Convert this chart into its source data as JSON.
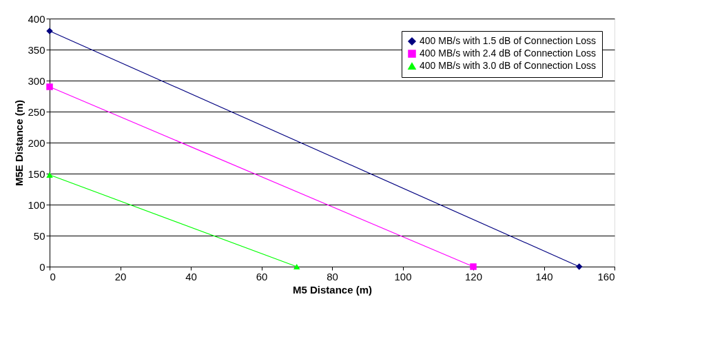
{
  "chart_data": {
    "type": "line",
    "xlabel": "M5 Distance (m)",
    "ylabel": "M5E Distance (m)",
    "xlim": [
      0,
      160
    ],
    "xticks": [
      0,
      20,
      40,
      60,
      80,
      100,
      120,
      140,
      160
    ],
    "ylim": [
      0,
      400
    ],
    "yticks": [
      0,
      50,
      100,
      150,
      200,
      250,
      300,
      350,
      400
    ],
    "grid": "y",
    "legend": "top right",
    "series": [
      {
        "name": "400 MB/s with 1.5 dB of Connection Loss",
        "color": "#000080",
        "marker": "diamond",
        "x": [
          0,
          150
        ],
        "values": [
          380,
          0
        ]
      },
      {
        "name": "400 MB/s with 2.4 dB of Connection Loss",
        "color": "#ff00ff",
        "marker": "square",
        "x": [
          0,
          120
        ],
        "values": [
          290,
          0
        ]
      },
      {
        "name": "400 MB/s with 3.0 dB of Connection Loss",
        "color": "#00ff00",
        "marker": "triangle",
        "x": [
          0,
          70
        ],
        "values": [
          148,
          0
        ]
      }
    ]
  }
}
